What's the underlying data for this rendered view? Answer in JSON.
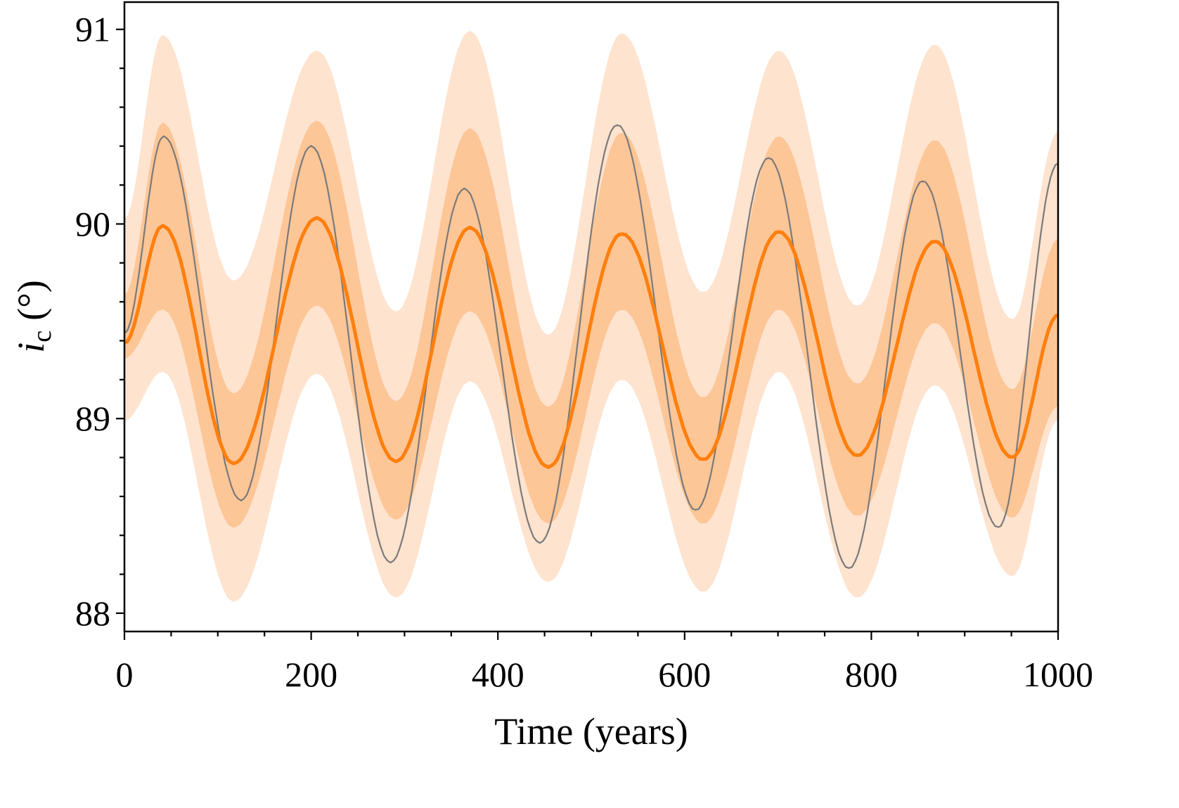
{
  "chart_data": {
    "type": "line",
    "title": "",
    "xlabel": "Time (years)",
    "ylabel": {
      "symbol": "i",
      "subscript": "c",
      "unit": "(°)"
    },
    "xlim": [
      0,
      1000
    ],
    "ylim": [
      87.906,
      91.14
    ],
    "xticks": [
      0,
      200,
      400,
      600,
      800,
      1000
    ],
    "xtick_labels": [
      "0",
      "200",
      "400",
      "600",
      "800",
      "1000"
    ],
    "xminor_step": 50,
    "yticks": [
      88,
      89,
      90,
      91
    ],
    "ytick_labels": [
      "88",
      "89",
      "90",
      "91"
    ],
    "yminor_step": 0.2,
    "grid": false,
    "legend": "none",
    "colors": {
      "outer_band": "#fee3cf",
      "inner_band": "#fdc697",
      "median": "#ff7f0e",
      "reference": "#7a7a7a"
    },
    "note": "Series given as [time, value] points at local extrema; smoothly interpolated between them.",
    "series": [
      {
        "name": "outer band (upper)",
        "points": [
          [
            0,
            90.03
          ],
          [
            41,
            90.97
          ],
          [
            117,
            89.71
          ],
          [
            206,
            90.89
          ],
          [
            291,
            89.55
          ],
          [
            370,
            90.99
          ],
          [
            454,
            89.43
          ],
          [
            533,
            90.98
          ],
          [
            620,
            89.65
          ],
          [
            701,
            90.89
          ],
          [
            785,
            89.58
          ],
          [
            868,
            90.92
          ],
          [
            951,
            89.51
          ],
          [
            1000,
            90.47
          ]
        ]
      },
      {
        "name": "outer band (lower)",
        "points": [
          [
            0,
            88.99
          ],
          [
            41,
            89.24
          ],
          [
            117,
            88.06
          ],
          [
            206,
            89.23
          ],
          [
            291,
            88.08
          ],
          [
            370,
            89.19
          ],
          [
            454,
            88.16
          ],
          [
            533,
            89.2
          ],
          [
            620,
            88.11
          ],
          [
            701,
            89.24
          ],
          [
            785,
            88.08
          ],
          [
            868,
            89.17
          ],
          [
            951,
            88.19
          ],
          [
            1000,
            88.99
          ]
        ]
      },
      {
        "name": "inner band (upper)",
        "points": [
          [
            0,
            89.64
          ],
          [
            41,
            90.52
          ],
          [
            117,
            89.13
          ],
          [
            206,
            90.53
          ],
          [
            291,
            89.09
          ],
          [
            370,
            90.49
          ],
          [
            454,
            89.06
          ],
          [
            533,
            90.47
          ],
          [
            620,
            89.11
          ],
          [
            701,
            90.45
          ],
          [
            785,
            89.18
          ],
          [
            868,
            90.43
          ],
          [
            951,
            89.15
          ],
          [
            1000,
            89.92
          ]
        ]
      },
      {
        "name": "inner band (lower)",
        "points": [
          [
            0,
            89.31
          ],
          [
            41,
            89.56
          ],
          [
            117,
            88.44
          ],
          [
            206,
            89.58
          ],
          [
            291,
            88.48
          ],
          [
            370,
            89.55
          ],
          [
            454,
            88.46
          ],
          [
            533,
            89.56
          ],
          [
            620,
            88.46
          ],
          [
            701,
            89.56
          ],
          [
            785,
            88.5
          ],
          [
            868,
            89.49
          ],
          [
            951,
            88.49
          ],
          [
            1000,
            89.06
          ]
        ]
      },
      {
        "name": "median",
        "points": [
          [
            0,
            89.39
          ],
          [
            41,
            89.99
          ],
          [
            117,
            88.77
          ],
          [
            206,
            90.03
          ],
          [
            291,
            88.78
          ],
          [
            370,
            89.98
          ],
          [
            454,
            88.75
          ],
          [
            533,
            89.95
          ],
          [
            620,
            88.79
          ],
          [
            701,
            89.96
          ],
          [
            785,
            88.81
          ],
          [
            868,
            89.91
          ],
          [
            951,
            88.8
          ],
          [
            1000,
            89.53
          ]
        ]
      },
      {
        "name": "reference",
        "points": [
          [
            0,
            89.44
          ],
          [
            42,
            90.45
          ],
          [
            125,
            88.58
          ],
          [
            200,
            90.4
          ],
          [
            285,
            88.26
          ],
          [
            364,
            90.18
          ],
          [
            445,
            88.36
          ],
          [
            528,
            90.51
          ],
          [
            612,
            88.53
          ],
          [
            690,
            90.34
          ],
          [
            776,
            88.23
          ],
          [
            855,
            90.22
          ],
          [
            936,
            88.44
          ],
          [
            1000,
            90.31
          ]
        ]
      }
    ]
  }
}
